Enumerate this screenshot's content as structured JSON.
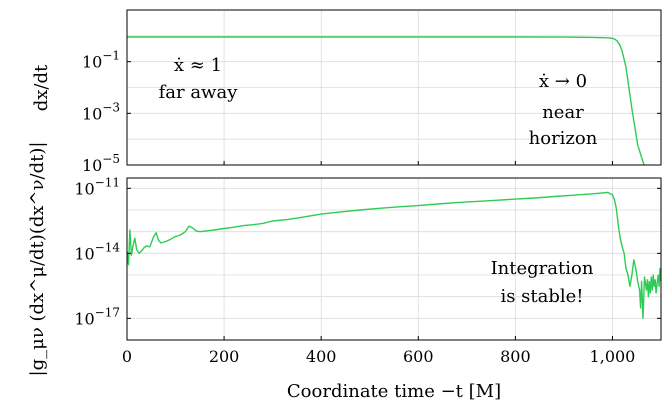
{
  "chart_data": [
    {
      "type": "line",
      "ylabel": "dx/dt",
      "yscale": "log",
      "ylim": [
        1e-05,
        10
      ],
      "xlim": [
        0,
        1100
      ],
      "grid": true,
      "y_ticks": [
        {
          "value": 0.1,
          "base": "10",
          "exp": "−1"
        },
        {
          "value": 0.001,
          "base": "10",
          "exp": "−3"
        },
        {
          "value": 1e-05,
          "base": "10",
          "exp": "−5"
        }
      ],
      "series": [
        {
          "color": "#2ecc55",
          "x": [
            0,
            100,
            200,
            300,
            400,
            500,
            600,
            700,
            800,
            900,
            960,
            990,
            1000,
            1005,
            1010,
            1015,
            1020,
            1028,
            1040,
            1052,
            1065
          ],
          "y": [
            0.9,
            0.9,
            0.9,
            0.9,
            0.9,
            0.9,
            0.9,
            0.9,
            0.9,
            0.89,
            0.87,
            0.84,
            0.8,
            0.74,
            0.62,
            0.45,
            0.25,
            0.06,
            0.0015,
            6e-05,
            7e-06
          ]
        }
      ],
      "annotations": [
        {
          "id": "far",
          "lines": [
            "ẋ ≈ 1",
            "far away"
          ]
        },
        {
          "id": "near",
          "lines": [
            "ẋ → 0",
            "near",
            "horizon"
          ]
        }
      ]
    },
    {
      "type": "line",
      "ylabel": "|g_μν (dx^μ/dt)(dx^ν/dt)|",
      "xlabel": "Coordinate time −t [M]",
      "yscale": "log",
      "ylim": [
        1e-18,
        3e-11
      ],
      "xlim": [
        0,
        1100
      ],
      "grid": true,
      "x_ticks": [
        {
          "value": 0,
          "label": "0"
        },
        {
          "value": 200,
          "label": "200"
        },
        {
          "value": 400,
          "label": "400"
        },
        {
          "value": 600,
          "label": "600"
        },
        {
          "value": 800,
          "label": "800"
        },
        {
          "value": 1000,
          "label": "1,000"
        }
      ],
      "y_ticks": [
        {
          "value": 1e-11,
          "base": "10",
          "exp": "−11"
        },
        {
          "value": 1e-14,
          "base": "10",
          "exp": "−14"
        },
        {
          "value": 1e-17,
          "base": "10",
          "exp": "−17"
        }
      ],
      "series": [
        {
          "color": "#2ecc55",
          "x": [
            0,
            3,
            6,
            9,
            12,
            16,
            20,
            25,
            30,
            35,
            40,
            47,
            55,
            60,
            65,
            70,
            80,
            90,
            100,
            110,
            120,
            128,
            135,
            142,
            150,
            165,
            180,
            200,
            220,
            240,
            260,
            280,
            300,
            330,
            360,
            400,
            440,
            480,
            520,
            560,
            600,
            640,
            680,
            720,
            760,
            800,
            840,
            880,
            920,
            960,
            990,
            1000,
            1004,
            1008,
            1012,
            1016,
            1020,
            1024,
            1028,
            1032,
            1036,
            1040,
            1044,
            1048,
            1052,
            1056,
            1058,
            1060,
            1063,
            1066,
            1068,
            1070,
            1072,
            1074,
            1076,
            1078,
            1080,
            1082,
            1084,
            1086,
            1088,
            1090,
            1092,
            1094,
            1096,
            1098,
            1100
          ],
          "y": [
            1.2e-14,
            3e-15,
            1.2e-13,
            8e-15,
            2e-14,
            5e-14,
            1.5e-14,
            1e-14,
            1.3e-14,
            1.8e-14,
            2.2e-14,
            2e-14,
            6e-14,
            9e-14,
            4e-14,
            3e-14,
            3.5e-14,
            4.5e-14,
            6e-14,
            7e-14,
            1e-13,
            1.8e-13,
            1.5e-13,
            1.1e-13,
            1e-13,
            1.1e-13,
            1.2e-13,
            1.4e-13,
            1.6e-13,
            1.9e-13,
            2.1e-13,
            2.4e-13,
            3.1e-13,
            3.6e-13,
            4.6e-13,
            6.5e-13,
            8.2e-13,
            1e-12,
            1.2e-12,
            1.4e-12,
            1.6e-12,
            1.9e-12,
            2.2e-12,
            2.5e-12,
            2.8e-12,
            3.2e-12,
            3.6e-12,
            4.2e-12,
            4.8e-12,
            5.6e-12,
            6.5e-12,
            5e-12,
            3e-12,
            1.2e-12,
            2e-13,
            5e-14,
            2e-14,
            1e-14,
            2e-15,
            1e-15,
            3e-16,
            1e-15,
            5e-15,
            2e-15,
            5e-16,
            2e-16,
            3e-17,
            5e-16,
            1e-17,
            8e-16,
            4e-16,
            2e-16,
            6e-16,
            1e-16,
            5e-16,
            1.5e-16,
            8e-16,
            2e-16,
            1e-15,
            3e-16,
            6e-16,
            1.5e-16,
            4e-16,
            1e-15,
            3e-16,
            2e-15,
            5e-16
          ]
        }
      ],
      "annotations": [
        {
          "id": "stable",
          "lines": [
            "Integration",
            "is stable!"
          ]
        }
      ]
    }
  ]
}
